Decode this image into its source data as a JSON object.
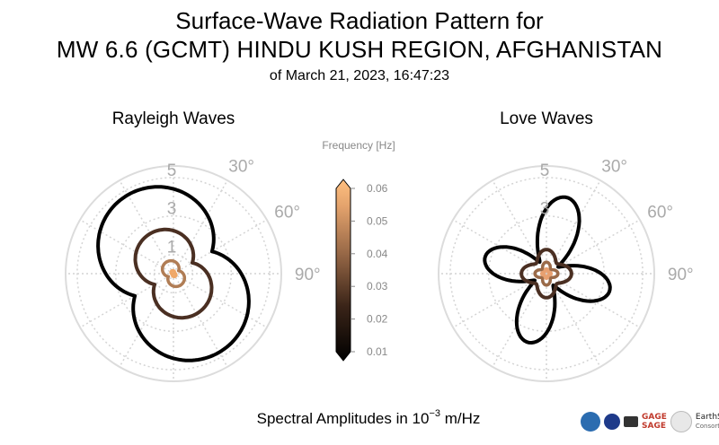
{
  "header": {
    "title_line1": "Surface-Wave Radiation Pattern for",
    "title_line2": "MW 6.6 (GCMT) HINDU KUSH REGION, AFGHANISTAN",
    "title_line3": "of March 21, 2023, 16:47:23"
  },
  "footer": {
    "label_prefix": "Spectral Amplitudes in 10",
    "label_exp": "−3",
    "label_suffix": " m/Hz"
  },
  "colorbar": {
    "label": "Frequency [Hz]",
    "ticks": [
      "0.06",
      "0.05",
      "0.04",
      "0.03",
      "0.02",
      "0.01"
    ],
    "min": 0.01,
    "max": 0.06
  },
  "chart_data": [
    {
      "type": "polar",
      "title": "Rayleigh Waves",
      "radial_ticks": [
        "1",
        "3",
        "5"
      ],
      "radial_values": [
        1,
        3,
        5
      ],
      "rmax": 5.6,
      "angle_ticks": [
        "30°",
        "60°",
        "90°"
      ],
      "angle_values": [
        30,
        60,
        90
      ],
      "grid": true,
      "series": [
        {
          "frequency": 0.01,
          "color": "#000000",
          "a": 4.2,
          "b": 5.0,
          "axis_deg": 150,
          "order": 1
        },
        {
          "frequency": 0.03,
          "color": "#4a2f22",
          "a": 2.05,
          "b": 2.55,
          "axis_deg": 150,
          "order": 1
        },
        {
          "frequency": 0.045,
          "color": "#b07d55",
          "a": 0.55,
          "b": 0.75,
          "axis_deg": 150,
          "order": 1
        },
        {
          "frequency": 0.06,
          "color": "#f0a868",
          "a": 0.1,
          "b": 0.18,
          "axis_deg": 150,
          "order": 1
        }
      ]
    },
    {
      "type": "polar",
      "title": "Love Waves",
      "radial_ticks": [
        "3",
        "5"
      ],
      "radial_values": [
        3,
        5
      ],
      "rmax": 5.6,
      "angle_ticks": [
        "30°",
        "60°",
        "90°"
      ],
      "angle_values": [
        30,
        60,
        90
      ],
      "grid": true,
      "series": [
        {
          "frequency": 0.01,
          "color": "#000000",
          "peaks": [
            3.4,
            3.7,
            3.3,
            4.1
          ],
          "base": 0.7,
          "offset_deg": 60
        },
        {
          "frequency": 0.03,
          "color": "#4a2f22",
          "peaks": [
            1.3,
            1.25,
            1.3,
            1.25
          ],
          "base": 0.75,
          "offset_deg": 45
        },
        {
          "frequency": 0.045,
          "color": "#9a6a48",
          "peaks": [
            0.6,
            0.6,
            0.6,
            0.6
          ],
          "base": 0.3,
          "offset_deg": 45
        },
        {
          "frequency": 0.06,
          "color": "#e8a070",
          "peaks": [
            0.25,
            0.25,
            0.25,
            0.25
          ],
          "base": 0.12,
          "offset_deg": 45
        }
      ]
    }
  ]
}
